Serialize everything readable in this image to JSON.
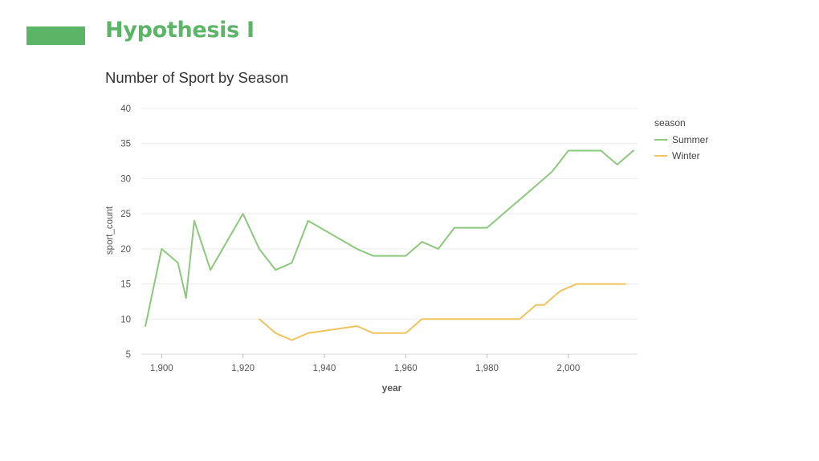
{
  "slide": {
    "title": "Hypothesis I",
    "accent_color": "#5cb567"
  },
  "chart_data": {
    "type": "line",
    "title": "Number of Sport by Season",
    "xlabel": "year",
    "ylabel": "sport_count",
    "xlim": [
      1895,
      2017
    ],
    "ylim": [
      5,
      40
    ],
    "x_ticks": [
      1900,
      1920,
      1940,
      1960,
      1980,
      2000
    ],
    "x_tick_labels": [
      "1,900",
      "1,920",
      "1,940",
      "1,960",
      "1,980",
      "2,000"
    ],
    "y_ticks": [
      5,
      10,
      15,
      20,
      25,
      30,
      35,
      40
    ],
    "y_tick_labels": [
      "5",
      "10",
      "15",
      "20",
      "25",
      "30",
      "35",
      "40"
    ],
    "grid": true,
    "legend": {
      "title": "season",
      "position": "top-right"
    },
    "series": [
      {
        "name": "Summer",
        "color": "#8cc97e",
        "x": [
          1896,
          1900,
          1904,
          1906,
          1908,
          1912,
          1920,
          1924,
          1928,
          1932,
          1936,
          1948,
          1952,
          1956,
          1960,
          1964,
          1968,
          1972,
          1976,
          1980,
          1984,
          1988,
          1992,
          1996,
          2000,
          2004,
          2008,
          2012,
          2016
        ],
        "y": [
          9,
          20,
          18,
          13,
          24,
          17,
          25,
          20,
          17,
          18,
          24,
          20,
          19,
          19,
          19,
          21,
          20,
          23,
          23,
          23,
          25,
          27,
          29,
          31,
          34,
          34,
          34,
          32,
          34
        ]
      },
      {
        "name": "Winter",
        "color": "#f0c35e",
        "x": [
          1924,
          1928,
          1932,
          1936,
          1948,
          1952,
          1956,
          1960,
          1964,
          1968,
          1972,
          1976,
          1980,
          1984,
          1988,
          1992,
          1994,
          1998,
          2002,
          2006,
          2010,
          2014
        ],
        "y": [
          10,
          8,
          7,
          8,
          9,
          8,
          8,
          8,
          10,
          10,
          10,
          10,
          10,
          10,
          10,
          12,
          12,
          14,
          15,
          15,
          15,
          15
        ]
      }
    ]
  }
}
